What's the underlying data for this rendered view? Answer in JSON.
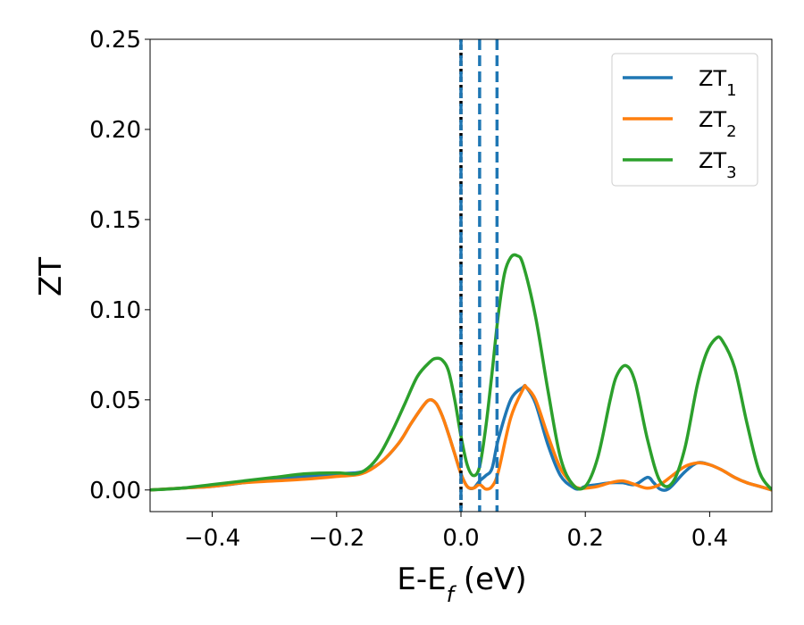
{
  "chart_data": {
    "type": "line",
    "title": "",
    "xlabel": {
      "main": "E-E",
      "sub": "f",
      "suffix": " (eV)"
    },
    "ylabel": "ZT",
    "xlim": [
      -0.5,
      0.5
    ],
    "ylim": [
      -0.012,
      0.25
    ],
    "xticks": [
      -0.4,
      -0.2,
      0.0,
      0.2,
      0.4
    ],
    "xtick_labels": [
      "−0.4",
      "−0.2",
      "0.0",
      "0.2",
      "0.4"
    ],
    "yticks": [
      0.0,
      0.05,
      0.1,
      0.15,
      0.2,
      0.25
    ],
    "ytick_labels": [
      "0.00",
      "0.05",
      "0.10",
      "0.15",
      "0.20",
      "0.25"
    ],
    "grid": false,
    "legend_position": "upper right",
    "vertical_lines": [
      {
        "x": 0.0,
        "color": "#000000",
        "style": "dashed"
      },
      {
        "x": 0.0,
        "color": "#1f77b4",
        "style": "dashed"
      },
      {
        "x": 0.03,
        "color": "#1f77b4",
        "style": "dashed"
      },
      {
        "x": 0.058,
        "color": "#1f77b4",
        "style": "dashed"
      }
    ],
    "series": [
      {
        "name": "ZT",
        "name_sub": "1",
        "color": "#1f77b4",
        "x": [
          -0.5,
          -0.45,
          -0.4,
          -0.35,
          -0.3,
          -0.25,
          -0.2,
          -0.16,
          -0.13,
          -0.1,
          -0.08,
          -0.06,
          -0.05,
          -0.04,
          -0.03,
          -0.02,
          -0.01,
          0.0,
          0.01,
          0.02,
          0.03,
          0.04,
          0.05,
          0.06,
          0.08,
          0.1,
          0.105,
          0.12,
          0.14,
          0.16,
          0.18,
          0.19,
          0.2,
          0.22,
          0.24,
          0.26,
          0.28,
          0.3,
          0.31,
          0.32,
          0.33,
          0.34,
          0.36,
          0.38,
          0.4,
          0.42,
          0.44,
          0.46,
          0.48,
          0.5
        ],
        "y": [
          0.0,
          0.001,
          0.002,
          0.004,
          0.006,
          0.0075,
          0.009,
          0.01,
          0.015,
          0.026,
          0.037,
          0.047,
          0.05,
          0.048,
          0.041,
          0.031,
          0.02,
          0.009,
          0.002,
          0.001,
          0.005,
          0.008,
          0.012,
          0.028,
          0.05,
          0.057,
          0.057,
          0.048,
          0.025,
          0.008,
          0.0015,
          0.0005,
          0.002,
          0.003,
          0.004,
          0.004,
          0.003,
          0.007,
          0.004,
          0.0005,
          0.0,
          0.0025,
          0.01,
          0.015,
          0.014,
          0.011,
          0.007,
          0.004,
          0.002,
          0.0
        ]
      },
      {
        "name": "ZT",
        "name_sub": "2",
        "color": "#ff7f0e",
        "x": [
          -0.5,
          -0.45,
          -0.4,
          -0.35,
          -0.3,
          -0.25,
          -0.2,
          -0.16,
          -0.13,
          -0.1,
          -0.08,
          -0.06,
          -0.05,
          -0.04,
          -0.03,
          -0.02,
          -0.01,
          0.0,
          0.01,
          0.02,
          0.03,
          0.04,
          0.05,
          0.06,
          0.08,
          0.1,
          0.105,
          0.12,
          0.14,
          0.16,
          0.18,
          0.19,
          0.2,
          0.22,
          0.24,
          0.26,
          0.28,
          0.3,
          0.32,
          0.34,
          0.36,
          0.38,
          0.4,
          0.42,
          0.44,
          0.46,
          0.48,
          0.5
        ],
        "y": [
          0.0,
          0.001,
          0.002,
          0.004,
          0.005,
          0.006,
          0.0075,
          0.009,
          0.015,
          0.026,
          0.037,
          0.047,
          0.05,
          0.048,
          0.041,
          0.031,
          0.02,
          0.009,
          0.002,
          0.001,
          0.003,
          0.0005,
          0.002,
          0.01,
          0.04,
          0.056,
          0.057,
          0.05,
          0.03,
          0.012,
          0.003,
          0.001,
          0.001,
          0.002,
          0.004,
          0.005,
          0.003,
          0.001,
          0.003,
          0.008,
          0.013,
          0.015,
          0.014,
          0.011,
          0.007,
          0.004,
          0.002,
          0.0
        ]
      },
      {
        "name": "ZT",
        "name_sub": "3",
        "color": "#2ca02c",
        "x": [
          -0.5,
          -0.45,
          -0.4,
          -0.35,
          -0.3,
          -0.25,
          -0.2,
          -0.17,
          -0.15,
          -0.13,
          -0.11,
          -0.09,
          -0.07,
          -0.05,
          -0.04,
          -0.03,
          -0.02,
          -0.01,
          0.0,
          0.01,
          0.02,
          0.03,
          0.04,
          0.05,
          0.06,
          0.07,
          0.08,
          0.09,
          0.1,
          0.12,
          0.14,
          0.16,
          0.18,
          0.2,
          0.22,
          0.24,
          0.25,
          0.265,
          0.28,
          0.3,
          0.32,
          0.34,
          0.36,
          0.38,
          0.395,
          0.41,
          0.42,
          0.44,
          0.46,
          0.48,
          0.5
        ],
        "y": [
          0.0,
          0.001,
          0.003,
          0.005,
          0.007,
          0.009,
          0.0095,
          0.009,
          0.012,
          0.02,
          0.033,
          0.048,
          0.063,
          0.071,
          0.073,
          0.072,
          0.066,
          0.05,
          0.03,
          0.014,
          0.008,
          0.013,
          0.035,
          0.065,
          0.097,
          0.12,
          0.129,
          0.13,
          0.125,
          0.096,
          0.055,
          0.018,
          0.003,
          0.002,
          0.018,
          0.05,
          0.063,
          0.069,
          0.06,
          0.028,
          0.005,
          0.004,
          0.023,
          0.058,
          0.076,
          0.084,
          0.083,
          0.068,
          0.037,
          0.01,
          0.0
        ]
      }
    ]
  }
}
